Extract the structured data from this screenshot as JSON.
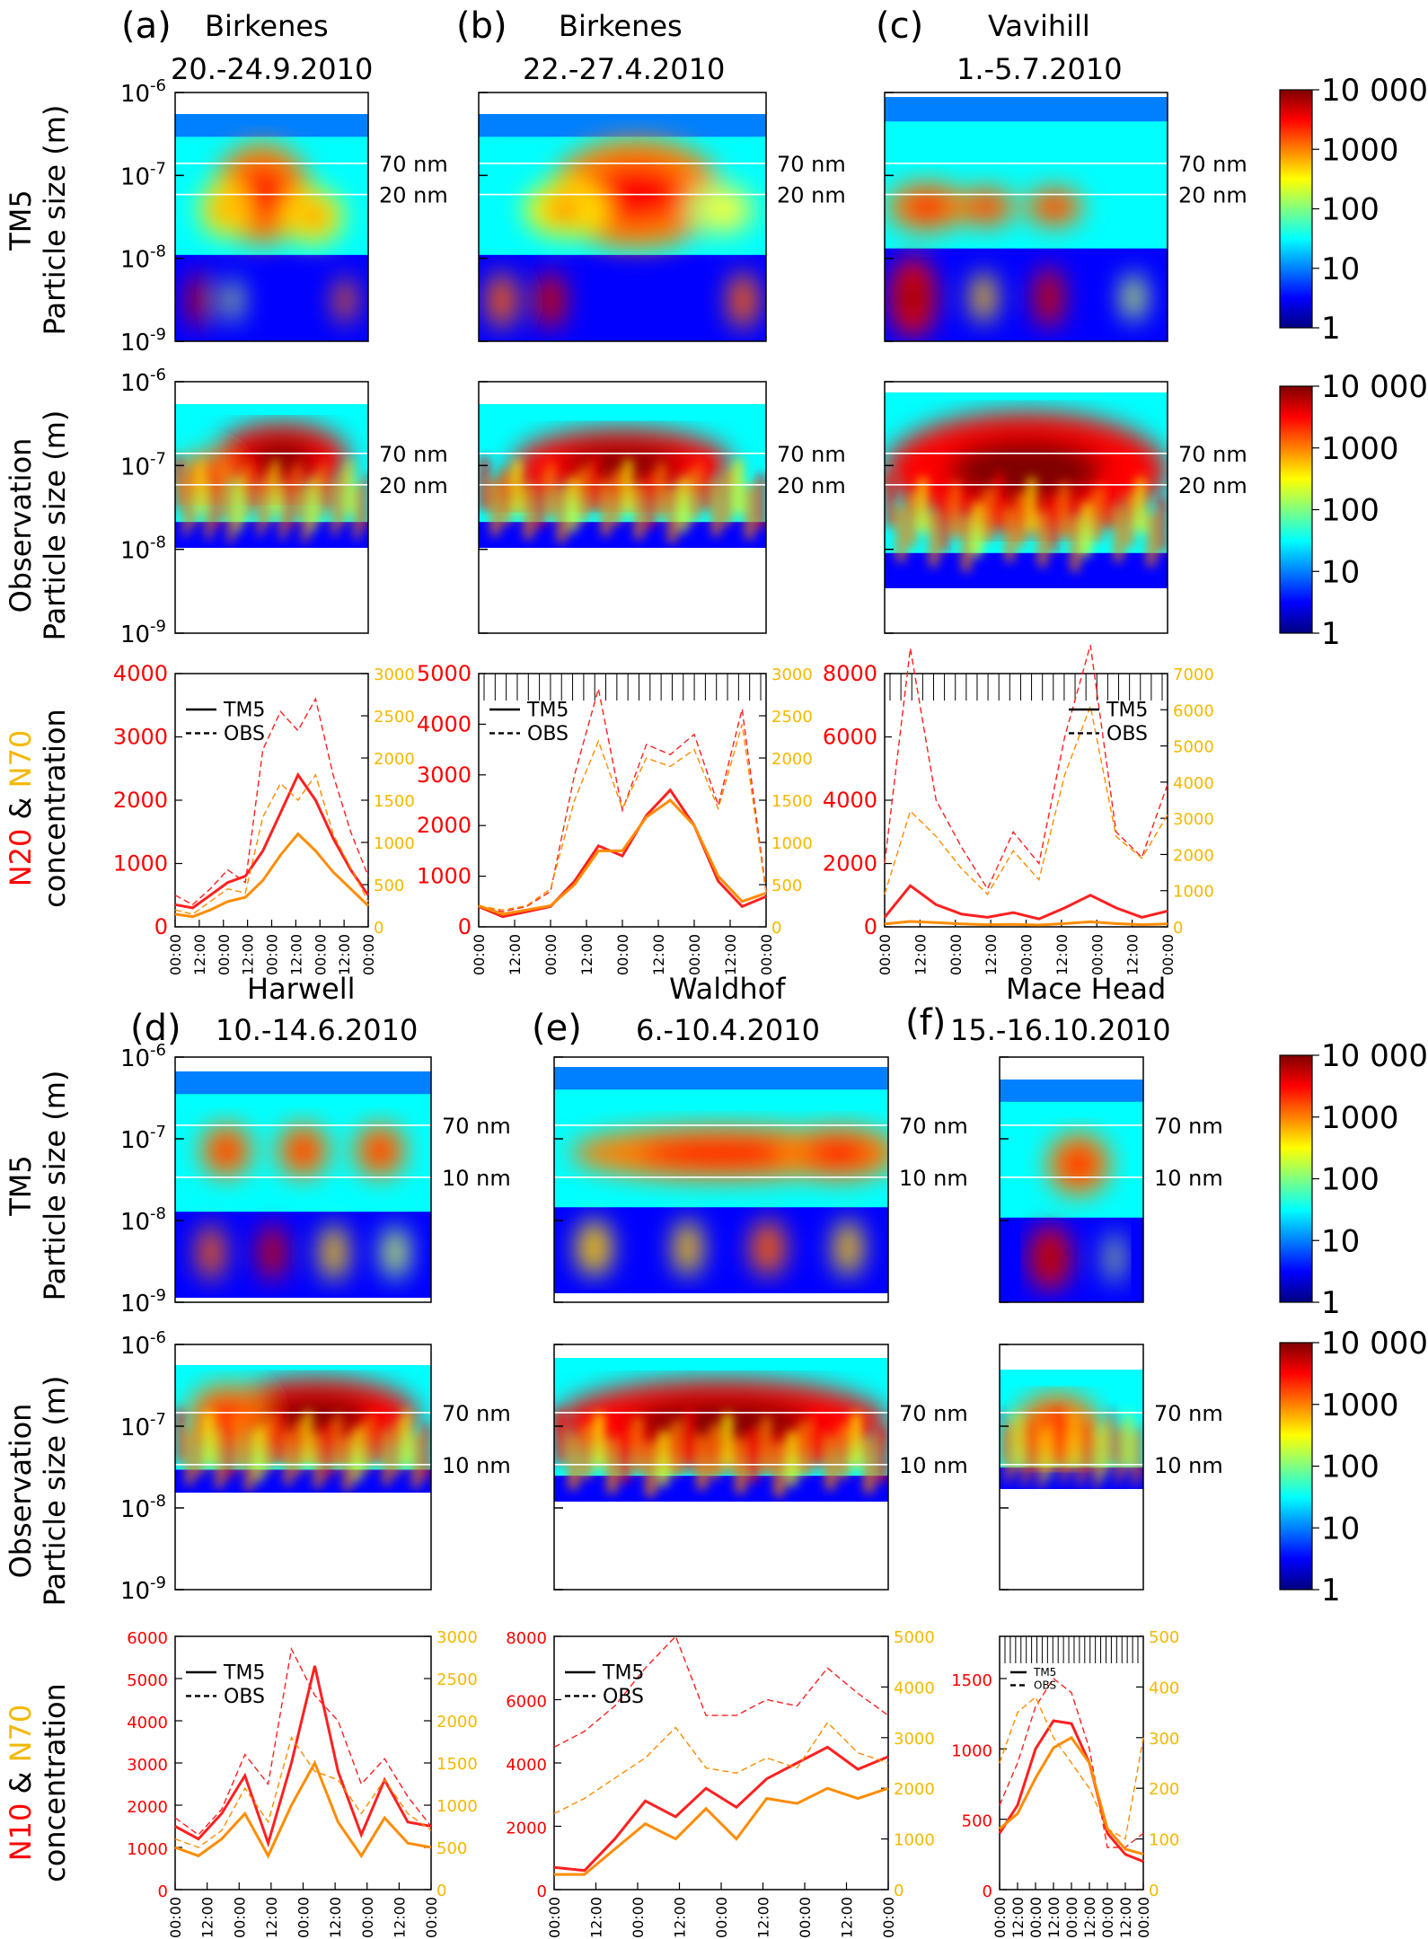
{
  "colorbar": {
    "ticks": [
      "10 000",
      "1000",
      "100",
      "10",
      "1"
    ],
    "stops": [
      "#00007f",
      "#0000ff",
      "#0080ff",
      "#00ffff",
      "#80ff80",
      "#ffff00",
      "#ff8000",
      "#ff0000",
      "#7f0000"
    ]
  },
  "rows": {
    "tm5": {
      "label_line1": "TM5",
      "label_line2": "Particle size (m)"
    },
    "obs": {
      "label_line1": "Observation",
      "label_line2": "Particle size (m)"
    },
    "conc_top": {
      "label_red": "N20",
      "label_amp": " & ",
      "label_orange": "N70",
      "label_line2": "concentration"
    },
    "conc_bottom": {
      "label_red": "N10",
      "label_amp": " & ",
      "label_orange": "N70",
      "label_line2": "concentration"
    }
  },
  "size_axis": {
    "exponents": [
      "-6",
      "-7",
      "-8",
      "-9"
    ],
    "base": "10"
  },
  "time_ticks": [
    "00:00",
    "12:00",
    "00:00",
    "12:00",
    "00:00",
    "12:00",
    "00:00",
    "12:00",
    "00:00"
  ],
  "legend": {
    "tm5": "TM5",
    "obs": "OBS"
  },
  "panels": [
    {
      "letter": "(a)",
      "site": "Birkenes",
      "dates": "20.-24.9.2010",
      "line_low": "20 nm",
      "line_high": "70 nm",
      "left_ticks": [
        "0",
        "1000",
        "2000",
        "3000",
        "4000"
      ],
      "right_ticks": [
        "0",
        "500",
        "1000",
        "1500",
        "2000",
        "2500",
        "3000"
      ]
    },
    {
      "letter": "(b)",
      "site": "Birkenes",
      "dates": "22.-27.4.2010",
      "line_low": "20 nm",
      "line_high": "70 nm",
      "left_ticks": [
        "0",
        "1000",
        "2000",
        "3000",
        "4000",
        "5000"
      ],
      "right_ticks": [
        "0",
        "500",
        "1000",
        "1500",
        "2000",
        "2500",
        "3000"
      ]
    },
    {
      "letter": "(c)",
      "site": "Vavihill",
      "dates": "1.-5.7.2010",
      "line_low": "20 nm",
      "line_high": "70 nm",
      "left_ticks": [
        "0",
        "2000",
        "4000",
        "6000",
        "8000"
      ],
      "right_ticks": [
        "0",
        "1000",
        "2000",
        "3000",
        "4000",
        "5000",
        "6000",
        "7000"
      ]
    },
    {
      "letter": "(d)",
      "site": "Harwell",
      "dates": "10.-14.6.2010",
      "line_low": "10 nm",
      "line_high": "70 nm",
      "left_ticks": [
        "0",
        "1000",
        "2000",
        "3000",
        "4000",
        "5000",
        "6000"
      ],
      "right_ticks": [
        "0",
        "500",
        "1000",
        "1500",
        "2000",
        "2500",
        "3000"
      ]
    },
    {
      "letter": "(e)",
      "site": "Waldhof",
      "dates": "6.-10.4.2010",
      "line_low": "10 nm",
      "line_high": "70 nm",
      "left_ticks": [
        "0",
        "2000",
        "4000",
        "6000",
        "8000"
      ],
      "right_ticks": [
        "0",
        "1000",
        "2000",
        "3000",
        "4000",
        "5000"
      ]
    },
    {
      "letter": "(f)",
      "site": "Mace Head",
      "dates": "15.-16.10.2010",
      "line_low": "10 nm",
      "line_high": "70 nm",
      "left_ticks": [
        "0",
        "500",
        "1000",
        "1500"
      ],
      "right_ticks": [
        "0",
        "100",
        "200",
        "300",
        "400",
        "500"
      ]
    }
  ],
  "chart_data": [
    {
      "type": "line",
      "panel": "(a)",
      "series": [
        {
          "name": "TM5",
          "quantity": "N20",
          "values": [
            350,
            300,
            500,
            700,
            800,
            1200,
            1800,
            2400,
            2000,
            1400,
            900,
            500
          ]
        },
        {
          "name": "OBS",
          "quantity": "N20",
          "values": [
            500,
            350,
            600,
            900,
            700,
            2800,
            3400,
            3100,
            3600,
            2400,
            1500,
            800
          ]
        },
        {
          "name": "TM5",
          "quantity": "N70",
          "values": [
            150,
            120,
            200,
            300,
            350,
            550,
            850,
            1100,
            900,
            650,
            450,
            250
          ]
        },
        {
          "name": "OBS",
          "quantity": "N70",
          "values": [
            200,
            150,
            300,
            450,
            400,
            1300,
            1700,
            1500,
            1800,
            1100,
            700,
            300
          ]
        }
      ],
      "ylim_left": [
        0,
        4000
      ],
      "ylim_right": [
        0,
        3000
      ]
    },
    {
      "type": "line",
      "panel": "(b)",
      "series": [
        {
          "name": "TM5",
          "quantity": "N20",
          "values": [
            400,
            200,
            300,
            400,
            900,
            1600,
            1400,
            2200,
            2700,
            2000,
            900,
            400,
            600
          ]
        },
        {
          "name": "OBS",
          "quantity": "N20",
          "values": [
            400,
            300,
            400,
            700,
            3000,
            4700,
            2300,
            3600,
            3400,
            3800,
            2400,
            4300,
            700
          ]
        },
        {
          "name": "TM5",
          "quantity": "N70",
          "values": [
            250,
            150,
            200,
            250,
            500,
            900,
            900,
            1300,
            1500,
            1200,
            600,
            300,
            400
          ]
        },
        {
          "name": "OBS",
          "quantity": "N70",
          "values": [
            250,
            200,
            250,
            450,
            1500,
            2200,
            1400,
            2000,
            1900,
            2100,
            1400,
            2400,
            400
          ]
        }
      ],
      "ylim_left": [
        0,
        5000
      ],
      "ylim_right": [
        0,
        3000
      ]
    },
    {
      "type": "line",
      "panel": "(c)",
      "series": [
        {
          "name": "TM5",
          "quantity": "N20",
          "values": [
            300,
            1300,
            700,
            400,
            300,
            450,
            250,
            600,
            1000,
            600,
            300,
            500
          ]
        },
        {
          "name": "OBS",
          "quantity": "N20",
          "values": [
            2000,
            8800,
            4000,
            2500,
            1200,
            3000,
            2000,
            6000,
            8900,
            3000,
            2200,
            4500
          ]
        },
        {
          "name": "TM5",
          "quantity": "N70",
          "values": [
            80,
            150,
            120,
            80,
            60,
            70,
            50,
            90,
            140,
            90,
            60,
            80
          ]
        },
        {
          "name": "OBS",
          "quantity": "N70",
          "values": [
            900,
            3200,
            2500,
            1600,
            900,
            2100,
            1300,
            4200,
            6100,
            2500,
            1900,
            3100
          ]
        }
      ],
      "ylim_left": [
        0,
        8000
      ],
      "ylim_right": [
        0,
        7000
      ]
    },
    {
      "type": "line",
      "panel": "(d)",
      "series": [
        {
          "name": "TM5",
          "quantity": "N10",
          "values": [
            1500,
            1200,
            1800,
            2700,
            1100,
            3000,
            5300,
            2800,
            1300,
            2600,
            1600,
            1500
          ]
        },
        {
          "name": "OBS",
          "quantity": "N10",
          "values": [
            1700,
            1300,
            1900,
            3200,
            2500,
            5700,
            4600,
            4000,
            2500,
            3100,
            2200,
            1500
          ]
        },
        {
          "name": "TM5",
          "quantity": "N70",
          "values": [
            500,
            400,
            600,
            900,
            400,
            1000,
            1500,
            800,
            400,
            850,
            550,
            500
          ]
        },
        {
          "name": "OBS",
          "quantity": "N70",
          "values": [
            600,
            500,
            700,
            1200,
            800,
            1800,
            1400,
            1300,
            900,
            1300,
            900,
            700
          ]
        }
      ],
      "ylim_left": [
        0,
        6000
      ],
      "ylim_right": [
        0,
        3000
      ]
    },
    {
      "type": "line",
      "panel": "(e)",
      "series": [
        {
          "name": "TM5",
          "quantity": "N10",
          "values": [
            700,
            600,
            1600,
            2800,
            2300,
            3200,
            2600,
            3500,
            4000,
            4500,
            3800,
            4200
          ]
        },
        {
          "name": "OBS",
          "quantity": "N10",
          "values": [
            4500,
            5000,
            5800,
            7000,
            8000,
            5500,
            5500,
            6000,
            5800,
            7000,
            6200,
            5500
          ]
        },
        {
          "name": "TM5",
          "quantity": "N70",
          "values": [
            300,
            300,
            800,
            1300,
            1000,
            1600,
            1000,
            1800,
            1700,
            2000,
            1800,
            2000
          ]
        },
        {
          "name": "OBS",
          "quantity": "N70",
          "values": [
            1500,
            1800,
            2200,
            2600,
            3200,
            2400,
            2300,
            2600,
            2400,
            3300,
            2700,
            2500
          ]
        }
      ],
      "ylim_left": [
        0,
        8000
      ],
      "ylim_right": [
        0,
        5000
      ]
    },
    {
      "type": "line",
      "panel": "(f)",
      "series": [
        {
          "name": "TM5",
          "quantity": "N10",
          "values": [
            400,
            600,
            1000,
            1200,
            1180,
            900,
            400,
            250,
            200
          ]
        },
        {
          "name": "OBS",
          "quantity": "N10",
          "values": [
            600,
            900,
            1300,
            1500,
            1400,
            1000,
            300,
            300,
            400
          ]
        },
        {
          "name": "TM5",
          "quantity": "N70",
          "values": [
            120,
            150,
            220,
            280,
            300,
            250,
            120,
            80,
            70
          ]
        },
        {
          "name": "OBS",
          "quantity": "N70",
          "values": [
            250,
            350,
            380,
            300,
            250,
            200,
            120,
            100,
            300
          ]
        }
      ],
      "ylim_left": [
        0,
        1800
      ],
      "ylim_right": [
        0,
        500
      ]
    }
  ]
}
